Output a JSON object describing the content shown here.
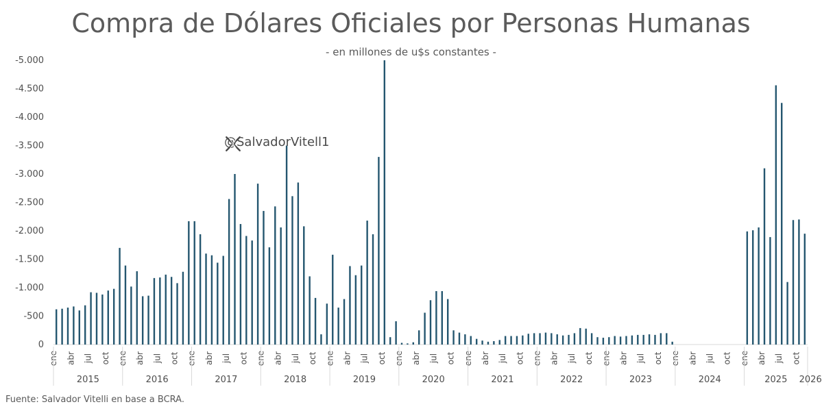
{
  "header": {
    "title": "Compra de Dólares Oficiales por Personas Humanas",
    "subtitle": "- en millones de u$s constantes -"
  },
  "watermark": {
    "handle": "@SalvadorVitell1",
    "icon": "x-logo-icon"
  },
  "footer": {
    "source": "Fuente: Salvador Vitelli en base a BCRA."
  },
  "colors": {
    "bar": "#24566f",
    "axis": "#d9d9d9",
    "text": "#4d4d4d"
  },
  "chart_data": {
    "type": "bar",
    "title": "Compra de Dólares Oficiales por Personas Humanas",
    "ylabel": "",
    "xlabel": "",
    "ylim": [
      0,
      -5000
    ],
    "y_ticks": [
      0,
      -500,
      -1000,
      -1500,
      -2000,
      -2500,
      -3000,
      -3500,
      -4000,
      -4500,
      -5000
    ],
    "y_tick_labels": [
      "0",
      "-500",
      "-1.000",
      "-1.500",
      "-2.000",
      "-2.500",
      "-3.000",
      "-3.500",
      "-4.000",
      "-4.500",
      "-5.000"
    ],
    "years": [
      "2015",
      "2016",
      "2017",
      "2018",
      "2019",
      "2020",
      "2021",
      "2022",
      "2023",
      "2024",
      "2025",
      "2026"
    ],
    "month_tick_labels": [
      "ene",
      "abr",
      "jul",
      "oct"
    ],
    "values": [
      -620,
      -630,
      -650,
      -670,
      -600,
      -690,
      -920,
      -910,
      -880,
      -950,
      -980,
      -1700,
      -1390,
      -1020,
      -1290,
      -850,
      -860,
      -1170,
      -1180,
      -1230,
      -1190,
      -1080,
      -1280,
      -2170,
      -2170,
      -1940,
      -1600,
      -1570,
      -1440,
      -1560,
      -2560,
      -3000,
      -2120,
      -1910,
      -1830,
      -2830,
      -2350,
      -1710,
      -2430,
      -2060,
      -3500,
      -2610,
      -2850,
      -2080,
      -1200,
      -820,
      -180,
      -720,
      -1580,
      -650,
      -800,
      -1380,
      -1220,
      -1390,
      -2180,
      -1940,
      -3300,
      -5000,
      -130,
      -410,
      -30,
      -20,
      -40,
      -250,
      -560,
      -780,
      -940,
      -940,
      -800,
      -250,
      -210,
      -180,
      -150,
      -100,
      -70,
      -50,
      -60,
      -80,
      -150,
      -150,
      -150,
      -160,
      -190,
      -200,
      -200,
      -210,
      -200,
      -180,
      -160,
      -170,
      -200,
      -290,
      -280,
      -200,
      -130,
      -120,
      -130,
      -150,
      -140,
      -150,
      -160,
      -170,
      -170,
      -180,
      -170,
      -200,
      -200,
      -50,
      0,
      0,
      0,
      0,
      0,
      0,
      0,
      0,
      0,
      0,
      0,
      0,
      -1990,
      -2010,
      -2060,
      -3100,
      -1890,
      -4560,
      -4250,
      -1100,
      -2190,
      -2200,
      -1950
    ]
  }
}
